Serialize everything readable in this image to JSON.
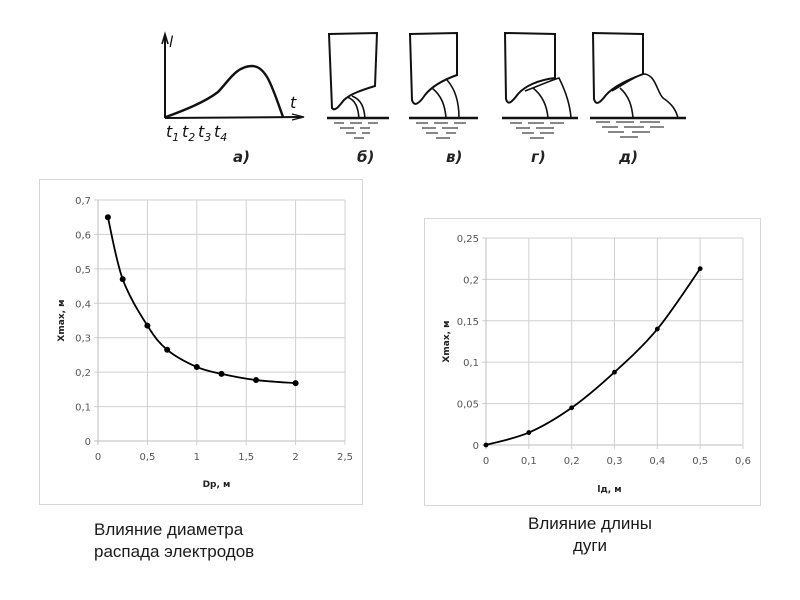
{
  "diagram": {
    "panels": [
      "а)",
      "б)",
      "в)",
      "г)",
      "д)"
    ],
    "graph_a": {
      "y_axis_label": "l",
      "x_axis_label": "t",
      "ticks": [
        "t",
        "t",
        "t",
        "t"
      ],
      "tick_subs": [
        "1",
        "2",
        "3",
        "4"
      ]
    }
  },
  "chart_data": [
    {
      "type": "line",
      "title": "",
      "xlabel": "Dp, м",
      "ylabel": "Xmax, м",
      "xlim": [
        0,
        2.5
      ],
      "ylim": [
        0,
        0.7
      ],
      "grid": true,
      "x_ticks": [
        "0",
        "0,5",
        "1",
        "1,5",
        "2",
        "2,5"
      ],
      "x_tick_values": [
        0,
        0.5,
        1,
        1.5,
        2,
        2.5
      ],
      "y_ticks": [
        "0",
        "0,1",
        "0,2",
        "0,3",
        "0,4",
        "0,5",
        "0,6",
        "0,7"
      ],
      "y_tick_values": [
        0,
        0.1,
        0.2,
        0.3,
        0.4,
        0.5,
        0.6,
        0.7
      ],
      "series": [
        {
          "name": "Xmax",
          "x": [
            0.1,
            0.25,
            0.5,
            0.7,
            1.0,
            1.25,
            1.6,
            2.0
          ],
          "y": [
            0.65,
            0.47,
            0.335,
            0.265,
            0.215,
            0.195,
            0.177,
            0.168
          ]
        }
      ],
      "color": "#000000",
      "caption": [
        "Влияние диаметра",
        "распада электродов"
      ]
    },
    {
      "type": "line",
      "title": "",
      "xlabel": "lд, м",
      "ylabel": "Xmax, м",
      "xlim": [
        0,
        0.6
      ],
      "ylim": [
        0,
        0.25
      ],
      "grid": true,
      "x_ticks": [
        "0",
        "0,1",
        "0,2",
        "0,3",
        "0,4",
        "0,5",
        "0,6"
      ],
      "x_tick_values": [
        0,
        0.1,
        0.2,
        0.3,
        0.4,
        0.5,
        0.6
      ],
      "y_ticks": [
        "0",
        "0,05",
        "0,1",
        "0,15",
        "0,2",
        "0,25"
      ],
      "y_tick_values": [
        0,
        0.05,
        0.1,
        0.15,
        0.2,
        0.25
      ],
      "series": [
        {
          "name": "Xmax",
          "x": [
            0,
            0.1,
            0.2,
            0.3,
            0.4,
            0.5
          ],
          "y": [
            0,
            0.015,
            0.045,
            0.088,
            0.14,
            0.213
          ]
        }
      ],
      "color": "#000000",
      "caption": [
        "Влияние длины",
        "дуги"
      ]
    }
  ]
}
